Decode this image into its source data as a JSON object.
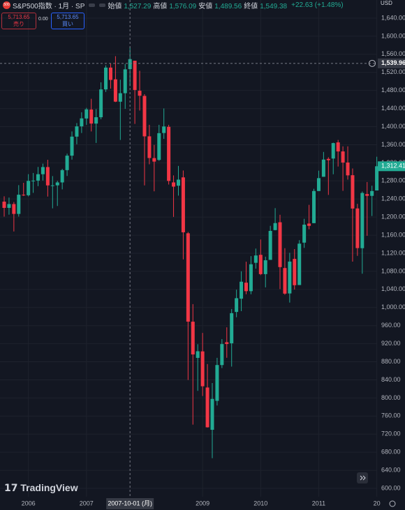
{
  "header": {
    "icon": "500",
    "symbol": "S&P500指数 · 1月 · SP",
    "ohlc_legend": [
      {
        "label": "始値",
        "value": "1,527.29"
      },
      {
        "label": "高値",
        "value": "1,576.09"
      },
      {
        "label": "安値",
        "value": "1,489.56"
      },
      {
        "label": "終値",
        "value": "1,549.38"
      }
    ],
    "change": "+22.63 (+1.48%)"
  },
  "trade": {
    "sell_price": "5,713.65",
    "sell_label": "売り",
    "spread": "0.00",
    "buy_price": "5,713.65",
    "buy_label": "買い"
  },
  "currency": "USD",
  "logo": "TradingView",
  "chart_data": {
    "type": "candlestick",
    "up_color": "#22ab94",
    "down_color": "#f23645",
    "grid": true,
    "categories": [
      null,
      null,
      null,
      null,
      null,
      "2006",
      null,
      null,
      null,
      null,
      null,
      null,
      null,
      null,
      null,
      null,
      null,
      "2007",
      null,
      null,
      null,
      null,
      null,
      null,
      null,
      null,
      null,
      null,
      null,
      null,
      null,
      null,
      null,
      null,
      null,
      null,
      null,
      null,
      null,
      null,
      null,
      "2009",
      null,
      null,
      null,
      null,
      null,
      null,
      null,
      null,
      null,
      null,
      null,
      "2010",
      null,
      null,
      null,
      null,
      null,
      null,
      null,
      null,
      null,
      null,
      null,
      "2011",
      null,
      null,
      null,
      null,
      null,
      null,
      null,
      null,
      null,
      null,
      null,
      "20"
    ],
    "open": [
      1234.18,
      1220.33,
      1228.81,
      1207.01,
      1249.48,
      1248.29,
      1280.08,
      1280.66,
      1294.83,
      1310.61,
      1270.09,
      1270.2,
      1276.66,
      1303.82,
      1335.85,
      1377.94,
      1400.63,
      1418.03,
      1437.9,
      1406.8,
      1420.83,
      1482.37,
      1530.62,
      1504.66,
      1455.18,
      1473.96,
      1527.29,
      1545.79,
      1479.37,
      1467.97,
      1378.6,
      1330.45,
      1326.41,
      1385.97,
      1399.62,
      1276.69,
      1269.42,
      1287.83,
      1164.17,
      968.67,
      888.61,
      902.99,
      823.09,
      729.57,
      793.59,
      872.74,
      923.26,
      920.82,
      990.22,
      1019.52,
      1054.91,
      1036.18,
      1098.89,
      1116.56,
      1073.89,
      1105.36,
      1171.23,
      1188.58,
      1087.3,
      1031.1,
      1107.53,
      1049.72,
      1143.49,
      1185.71,
      1186.6,
      1257.62,
      1289.14,
      1328.64,
      1329.48,
      1365.21,
      1345.2,
      1320.64,
      1292.59,
      1219.12,
      1131.21,
      1251.0,
      1246.91,
      1258.86
    ],
    "high": [
      1245.86,
      1243.13,
      1233.34,
      1270.64,
      1275.8,
      1294.9,
      1297.57,
      1310.88,
      1318.16,
      1326.7,
      1290.68,
      1280.42,
      1306.74,
      1340.28,
      1389.45,
      1407.89,
      1431.81,
      1441.61,
      1461.57,
      1438.89,
      1498.02,
      1535.56,
      1540.56,
      1555.9,
      1503.89,
      1538.74,
      1576.09,
      1545.79,
      1523.57,
      1471.77,
      1404.05,
      1359.68,
      1404.05,
      1440.24,
      1404.05,
      1292.17,
      1313.15,
      1303.04,
      1167.03,
      1007.51,
      918.85,
      943.85,
      875.01,
      832.98,
      888.7,
      930.17,
      956.23,
      996.68,
      1039.47,
      1080.15,
      1101.36,
      1113.69,
      1130.38,
      1150.45,
      1112.42,
      1180.69,
      1219.8,
      1205.13,
      1131.23,
      1120.95,
      1129.24,
      1148.9,
      1196.14,
      1227.08,
      1262.6,
      1302.67,
      1344.07,
      1332.28,
      1364.56,
      1370.58,
      1356.48,
      1356.48,
      1307.38,
      1229.29,
      1256.55,
      1277.55,
      1269.37,
      1333.47
    ],
    "low": [
      1201.07,
      1205.35,
      1168.2,
      1201.07,
      1246.59,
      1245.74,
      1253.61,
      1268.42,
      1280.74,
      1245.34,
      1219.29,
      1224.54,
      1261.3,
      1290.93,
      1327.1,
      1360.98,
      1385.93,
      1403.97,
      1389.42,
      1363.98,
      1416.37,
      1476.7,
      1484.18,
      1454.25,
      1370.6,
      1439.29,
      1489.56,
      1406.1,
      1435.65,
      1270.05,
      1316.75,
      1256.98,
      1324.35,
      1373.07,
      1272.0,
      1200.44,
      1247.45,
      1106.39,
      839.8,
      741.02,
      815.69,
      804.3,
      734.52,
      666.79,
      783.32,
      866.1,
      888.86,
      869.32,
      978.51,
      991.97,
      1029.38,
      1029.38,
      1085.89,
      1071.59,
      1044.5,
      1105.36,
      1170.69,
      1040.78,
      1028.33,
      1010.91,
      1039.7,
      1049.72,
      1131.87,
      1173.0,
      1186.6,
      1257.62,
      1289.14,
      1249.05,
      1294.7,
      1311.8,
      1258.07,
      1282.86,
      1101.54,
      1114.22,
      1074.77,
      1158.66,
      1202.37,
      1258.86
    ],
    "close": [
      1220.33,
      1228.81,
      1207.01,
      1249.48,
      1248.29,
      1280.08,
      1280.66,
      1294.83,
      1310.61,
      1270.09,
      1270.2,
      1276.66,
      1303.82,
      1335.85,
      1377.94,
      1400.63,
      1418.3,
      1438.24,
      1406.82,
      1420.86,
      1482.37,
      1530.62,
      1503.35,
      1455.27,
      1473.99,
      1526.75,
      1549.38,
      1481.14,
      1468.36,
      1378.55,
      1330.63,
      1322.7,
      1385.59,
      1400.38,
      1280.0,
      1267.38,
      1282.83,
      1166.36,
      968.75,
      896.24,
      903.25,
      825.88,
      735.09,
      797.87,
      872.81,
      919.14,
      919.32,
      987.48,
      1020.62,
      1057.08,
      1036.19,
      1095.63,
      1115.1,
      1073.87,
      1104.49,
      1169.43,
      1186.69,
      1089.41,
      1030.71,
      1101.6,
      1049.33,
      1141.2,
      1183.26,
      1180.55,
      1257.64,
      1286.12,
      1327.22,
      1325.83,
      1363.61,
      1345.2,
      1320.64,
      1292.28,
      1218.89,
      1131.42,
      1253.3,
      1246.96,
      1257.6,
      1312.41
    ],
    "ylim": [
      581.5,
      1680.1
    ],
    "yticks": [
      {
        "value": 600,
        "label": "600.00"
      },
      {
        "value": 640,
        "label": "640.00"
      },
      {
        "value": 680,
        "label": "680.00"
      },
      {
        "value": 720,
        "label": "720.00"
      },
      {
        "value": 760,
        "label": "760.00"
      },
      {
        "value": 800,
        "label": "800.00"
      },
      {
        "value": 840,
        "label": "840.00"
      },
      {
        "value": 880,
        "label": "880.00"
      },
      {
        "value": 920,
        "label": "920.00"
      },
      {
        "value": 960,
        "label": "960.00"
      },
      {
        "value": 1000,
        "label": "1,000.00"
      },
      {
        "value": 1040,
        "label": "1,040.00"
      },
      {
        "value": 1080,
        "label": "1,080.00"
      },
      {
        "value": 1120,
        "label": "1,120.00"
      },
      {
        "value": 1160,
        "label": "1,160.00"
      },
      {
        "value": 1200,
        "label": "1,200.00"
      },
      {
        "value": 1240,
        "label": "1,240.00"
      },
      {
        "value": 1280,
        "label": "1,280.00"
      },
      {
        "value": 1320,
        "label": "1,320.00"
      },
      {
        "value": 1360,
        "label": "1,360.00"
      },
      {
        "value": 1400,
        "label": "1,400.00"
      },
      {
        "value": 1440,
        "label": "1,440.00"
      },
      {
        "value": 1480,
        "label": "1,480.00"
      },
      {
        "value": 1520,
        "label": "1,520.00"
      },
      {
        "value": 1560,
        "label": "1,560.00"
      },
      {
        "value": 1600,
        "label": "1,600.00"
      },
      {
        "value": 1640,
        "label": "1,640.00"
      }
    ],
    "crosshair_price": {
      "value": 1539.96,
      "label": "1,539.96"
    },
    "crosshair_date": "2007-10-01 (月)",
    "last_price": {
      "value": 1312.41,
      "label": "1,312.41"
    }
  }
}
